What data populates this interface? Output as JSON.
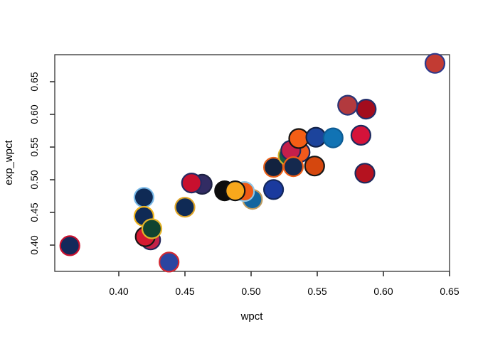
{
  "figure": {
    "background": "#ffffff",
    "box_color": "#333333",
    "tick_color": "#333333"
  },
  "chart_data": {
    "type": "scatter",
    "title": "",
    "xlabel": "wpct",
    "ylabel": "exp_wpct",
    "x_ticks": [
      0.4,
      0.45,
      0.5,
      0.55,
      0.6,
      0.65
    ],
    "x_tick_labels": [
      "0.40",
      "0.45",
      "0.50",
      "0.55",
      "0.60",
      "0.65"
    ],
    "y_ticks": [
      0.4,
      0.45,
      0.5,
      0.55,
      0.6,
      0.65
    ],
    "y_tick_labels": [
      "0.40",
      "0.45",
      "0.50",
      "0.55",
      "0.60",
      "0.65"
    ],
    "xlim": [
      0.3516,
      0.65
    ],
    "ylim": [
      0.3598,
      0.6913
    ],
    "grid": false,
    "legend": "none",
    "marker": {
      "shape": "circle",
      "radius_px": 13.5,
      "stroke_width_px": 2.2
    },
    "points": [
      {
        "x": 0.363,
        "y": 0.399,
        "fill": "#14295b",
        "stroke": "#c8102e"
      },
      {
        "x": 0.419,
        "y": 0.473,
        "fill": "#0f2a55",
        "stroke": "#79b9e8"
      },
      {
        "x": 0.419,
        "y": 0.444,
        "fill": "#0f2a55",
        "stroke": "#eeb21c"
      },
      {
        "x": 0.424,
        "y": 0.408,
        "fill": "#c32148",
        "stroke": "#23265a"
      },
      {
        "x": 0.42,
        "y": 0.413,
        "fill": "#d51930",
        "stroke": "#151515"
      },
      {
        "x": 0.425,
        "y": 0.425,
        "fill": "#114430",
        "stroke": "#e3b229"
      },
      {
        "x": 0.438,
        "y": 0.374,
        "fill": "#2b45a0",
        "stroke": "#d22730"
      },
      {
        "x": 0.45,
        "y": 0.458,
        "fill": "#0f2a55",
        "stroke": "#dfa528"
      },
      {
        "x": 0.463,
        "y": 0.493,
        "fill": "#322c63",
        "stroke": "#1d2142"
      },
      {
        "x": 0.455,
        "y": 0.495,
        "fill": "#c8102e",
        "stroke": "#252a63"
      },
      {
        "x": 0.48,
        "y": 0.483,
        "fill": "#0d0d0d",
        "stroke": "#0d0d0d"
      },
      {
        "x": 0.501,
        "y": 0.47,
        "fill": "#12659f",
        "stroke": "#bd9b60"
      },
      {
        "x": 0.495,
        "y": 0.482,
        "fill": "#ef5a15",
        "stroke": "#8fc6e6"
      },
      {
        "x": 0.488,
        "y": 0.483,
        "fill": "#f8a81c",
        "stroke": "#121212"
      },
      {
        "x": 0.517,
        "y": 0.485,
        "fill": "#1a3a9e",
        "stroke": "#13275c"
      },
      {
        "x": 0.517,
        "y": 0.519,
        "fill": "#12223f",
        "stroke": "#e8601a"
      },
      {
        "x": 0.528,
        "y": 0.537,
        "fill": "#175a40",
        "stroke": "#d8b22a"
      },
      {
        "x": 0.537,
        "y": 0.542,
        "fill": "#f2591c",
        "stroke": "#17255c"
      },
      {
        "x": 0.53,
        "y": 0.545,
        "fill": "#c51f4b",
        "stroke": "#1c2960"
      },
      {
        "x": 0.532,
        "y": 0.52,
        "fill": "#15294e",
        "stroke": "#ef5c14"
      },
      {
        "x": 0.548,
        "y": 0.521,
        "fill": "#d5470e",
        "stroke": "#161616"
      },
      {
        "x": 0.536,
        "y": 0.563,
        "fill": "#f45e15",
        "stroke": "#141414"
      },
      {
        "x": 0.549,
        "y": 0.565,
        "fill": "#1c449c",
        "stroke": "#112046"
      },
      {
        "x": 0.562,
        "y": 0.564,
        "fill": "#1173b4",
        "stroke": "#0d5c94"
      },
      {
        "x": 0.583,
        "y": 0.568,
        "fill": "#d5133a",
        "stroke": "#1d2a5e"
      },
      {
        "x": 0.586,
        "y": 0.51,
        "fill": "#b5121f",
        "stroke": "#1d2a5e"
      },
      {
        "x": 0.587,
        "y": 0.608,
        "fill": "#a30c1d",
        "stroke": "#232f6b"
      },
      {
        "x": 0.573,
        "y": 0.614,
        "fill": "#b23a3e",
        "stroke": "#283577"
      },
      {
        "x": 0.639,
        "y": 0.678,
        "fill": "#c23b33",
        "stroke": "#2d3a8c"
      }
    ]
  }
}
